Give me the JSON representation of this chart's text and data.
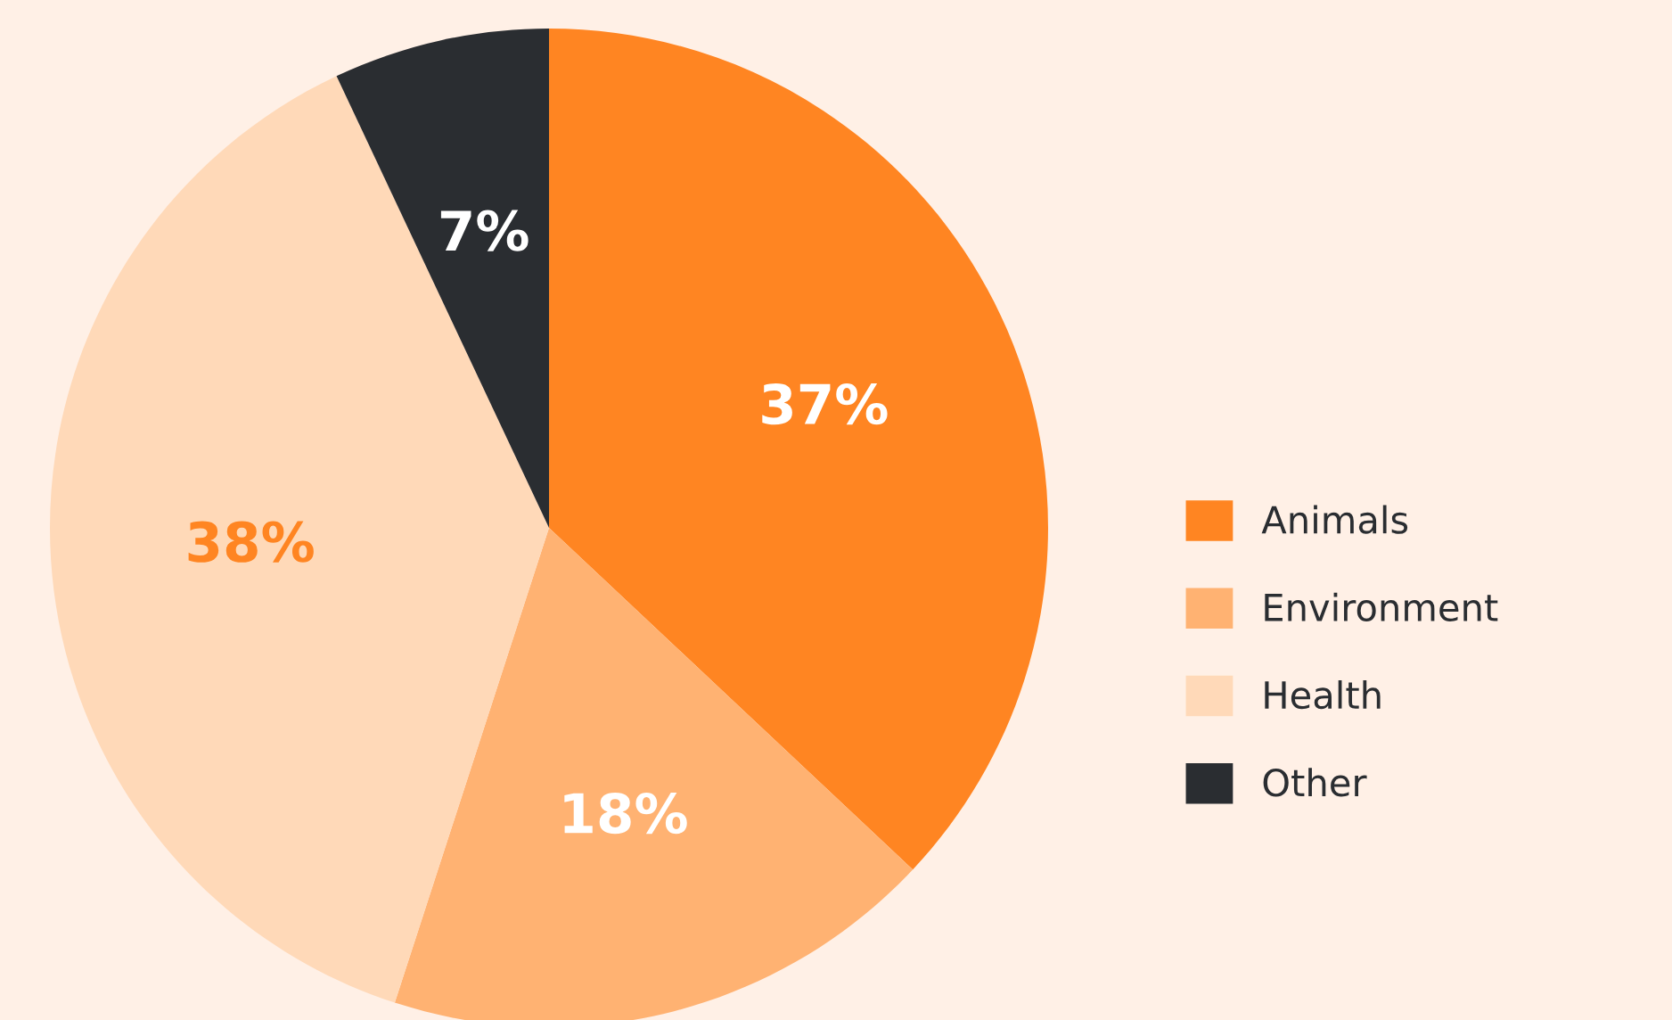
{
  "chart_data": {
    "type": "pie",
    "categories": [
      "Animals",
      "Environment",
      "Health",
      "Other"
    ],
    "values": [
      37,
      18,
      38,
      7
    ],
    "colors": [
      "#ff8522",
      "#ffb272",
      "#ffd9b8",
      "#2a2d31"
    ],
    "value_labels": [
      "37%",
      "18%",
      "38%",
      "7%"
    ],
    "legend": "right"
  }
}
